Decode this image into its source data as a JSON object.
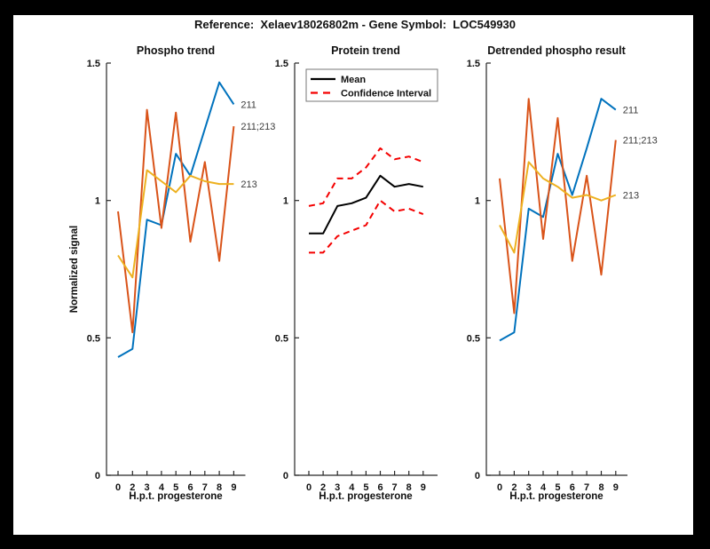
{
  "figure": {
    "title": "Reference:  Xelaev18026802m - Gene Symbol:  LOC549930",
    "background_color": "#000000",
    "canvas_color": "#ffffff"
  },
  "palette": {
    "blue": "#0072BD",
    "orange": "#D95319",
    "yellow": "#EDB120",
    "red": "#F40000",
    "black": "#000000"
  },
  "axis": {
    "ylabel": "Normalized signal",
    "ytick_labels": [
      "0",
      "0.5",
      "1",
      "1.5"
    ],
    "ytick_values": [
      0,
      0.5,
      1,
      1.5
    ],
    "ylim": [
      0,
      1.5
    ]
  },
  "chart_data": [
    {
      "type": "line",
      "title": "Phospho trend",
      "xlabel": "H.p.t. progesterone",
      "ylabel": "Normalized signal",
      "categories": [
        "0",
        "2",
        "3",
        "4",
        "5",
        "6",
        "7",
        "8",
        "9"
      ],
      "ylim": [
        0,
        1.5
      ],
      "grid": false,
      "series": [
        {
          "name": "211",
          "color": "blue",
          "style": "solid",
          "end_label": "211",
          "values": [
            0.43,
            0.46,
            0.93,
            0.91,
            1.17,
            1.09,
            1.26,
            1.43,
            1.35
          ]
        },
        {
          "name": "211;213",
          "color": "orange",
          "style": "solid",
          "end_label": "211;213",
          "values": [
            0.96,
            0.52,
            1.33,
            0.9,
            1.32,
            0.85,
            1.14,
            0.78,
            1.27
          ]
        },
        {
          "name": "213",
          "color": "yellow",
          "style": "solid",
          "end_label": "213",
          "values": [
            0.8,
            0.72,
            1.11,
            1.07,
            1.03,
            1.09,
            1.07,
            1.06,
            1.06
          ]
        }
      ]
    },
    {
      "type": "line",
      "title": "Protein trend",
      "xlabel": "H.p.t. progesterone",
      "categories": [
        "0",
        "2",
        "3",
        "4",
        "5",
        "6",
        "7",
        "8",
        "9"
      ],
      "ylim": [
        0,
        1.5
      ],
      "grid": false,
      "series": [
        {
          "name": "Mean",
          "color": "black",
          "style": "solid",
          "end_label": null,
          "values": [
            0.88,
            0.88,
            0.98,
            0.99,
            1.01,
            1.09,
            1.05,
            1.06,
            1.05
          ]
        },
        {
          "name": "Confidence Interval upper",
          "color": "red",
          "style": "dashed",
          "end_label": null,
          "values": [
            0.98,
            0.99,
            1.08,
            1.08,
            1.12,
            1.19,
            1.15,
            1.16,
            1.14
          ]
        },
        {
          "name": "Confidence Interval lower",
          "color": "red",
          "style": "dashed",
          "end_label": null,
          "values": [
            0.81,
            0.81,
            0.87,
            0.89,
            0.91,
            1.0,
            0.96,
            0.97,
            0.95
          ]
        }
      ],
      "legend": {
        "position": "northwest",
        "entries": [
          {
            "label": "Mean",
            "color": "black",
            "style": "solid"
          },
          {
            "label": "Confidence Interval",
            "color": "red",
            "style": "dashed"
          }
        ]
      }
    },
    {
      "type": "line",
      "title": "Detrended phospho result",
      "xlabel": "H.p.t. progesterone",
      "categories": [
        "0",
        "2",
        "3",
        "4",
        "5",
        "6",
        "7",
        "8",
        "9"
      ],
      "ylim": [
        0,
        1.5
      ],
      "grid": false,
      "series": [
        {
          "name": "211",
          "color": "blue",
          "style": "solid",
          "end_label": "211",
          "values": [
            0.49,
            0.52,
            0.97,
            0.94,
            1.17,
            1.02,
            1.19,
            1.37,
            1.33
          ]
        },
        {
          "name": "211;213",
          "color": "orange",
          "style": "solid",
          "end_label": "211;213",
          "values": [
            1.08,
            0.59,
            1.37,
            0.86,
            1.3,
            0.78,
            1.09,
            0.73,
            1.22
          ]
        },
        {
          "name": "213",
          "color": "yellow",
          "style": "solid",
          "end_label": "213",
          "values": [
            0.91,
            0.81,
            1.14,
            1.08,
            1.05,
            1.01,
            1.02,
            1.0,
            1.02
          ]
        }
      ]
    }
  ]
}
